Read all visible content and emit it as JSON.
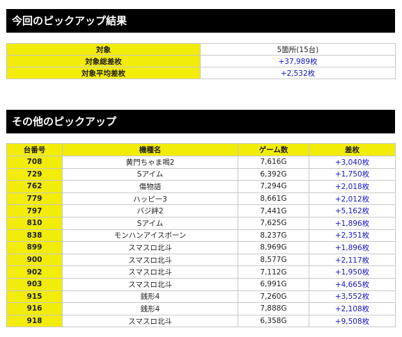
{
  "section1": {
    "title": "今回のピックアップ結果",
    "rows": [
      {
        "label": "対象",
        "value": "5箇所(15台)"
      },
      {
        "label": "対象総差枚",
        "value": "+37,989枚"
      },
      {
        "label": "対象平均差枚",
        "value": "+2,532枚"
      }
    ]
  },
  "section2": {
    "title": "その他のピックアップ",
    "headers": {
      "number": "台番号",
      "machine": "機種名",
      "games": "ゲーム数",
      "diff": "差枚"
    },
    "rows": [
      {
        "number": "708",
        "machine": "黄門ちゃま喝2",
        "games": "7,616G",
        "diff": "+3,040枚"
      },
      {
        "number": "729",
        "machine": "Sアイム",
        "games": "6,392G",
        "diff": "+1,750枚"
      },
      {
        "number": "762",
        "machine": "傷物語",
        "games": "7,294G",
        "diff": "+2,018枚"
      },
      {
        "number": "779",
        "machine": "ハッピー3",
        "games": "8,661G",
        "diff": "+2,012枚"
      },
      {
        "number": "797",
        "machine": "バジ絆2",
        "games": "7,441G",
        "diff": "+5,162枚"
      },
      {
        "number": "810",
        "machine": "Sアイム",
        "games": "7,625G",
        "diff": "+1,896枚"
      },
      {
        "number": "838",
        "machine": "モンハンアイスボーン",
        "games": "8,237G",
        "diff": "+2,351枚"
      },
      {
        "number": "899",
        "machine": "スマスロ北斗",
        "games": "8,969G",
        "diff": "+1,896枚"
      },
      {
        "number": "900",
        "machine": "スマスロ北斗",
        "games": "8,577G",
        "diff": "+2,117枚"
      },
      {
        "number": "902",
        "machine": "スマスロ北斗",
        "games": "7,112G",
        "diff": "+1,950枚"
      },
      {
        "number": "903",
        "machine": "スマスロ北斗",
        "games": "6,991G",
        "diff": "+4,665枚"
      },
      {
        "number": "915",
        "machine": "銭形4",
        "games": "7,260G",
        "diff": "+3,552枚"
      },
      {
        "number": "916",
        "machine": "銭形4",
        "games": "7,888G",
        "diff": "+2,108枚"
      },
      {
        "number": "918",
        "machine": "スマスロ北斗",
        "games": "6,358G",
        "diff": "+9,508枚"
      }
    ]
  }
}
